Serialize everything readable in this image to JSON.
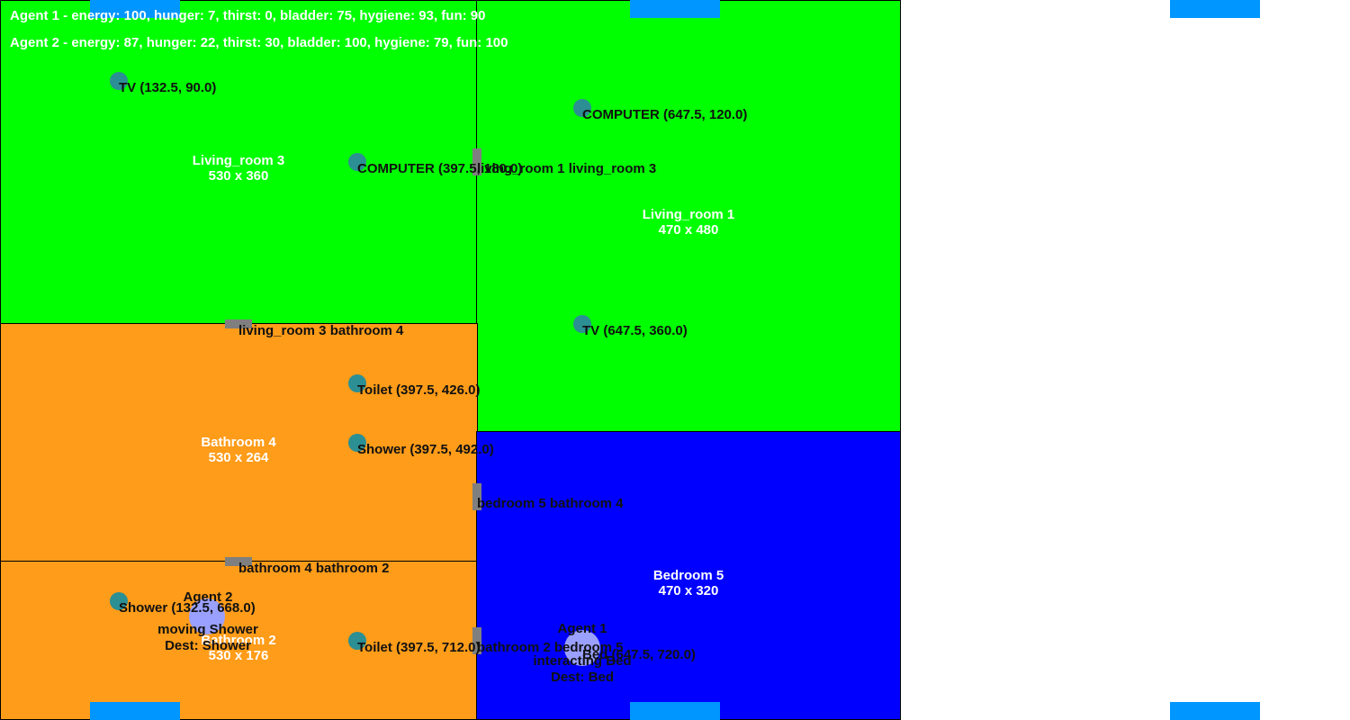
{
  "status": {
    "agent1": "Agent 1 - energy: 100, hunger: 7, thirst: 0, bladder: 75, hygiene: 93, fun: 90",
    "agent2": "Agent 2 - energy: 87, hunger: 22, thirst: 30, bladder: 100, hygiene: 79, fun: 100"
  },
  "rooms": {
    "living_room_3": {
      "name": "Living_room 3",
      "size": "530 x 360"
    },
    "living_room_1": {
      "name": "Living_room 1",
      "size": "470 x 480"
    },
    "bathroom_4": {
      "name": "Bathroom 4",
      "size": "530 x 264"
    },
    "bathroom_2": {
      "name": "Bathroom 2",
      "size": "530 x 176"
    },
    "bedroom_5": {
      "name": "Bedroom 5",
      "size": "470 x 320"
    }
  },
  "objects": {
    "tv_lr3": "TV (132.5, 90.0)",
    "computer_lr3": "COMPUTER (397.5, 180.0)",
    "computer_lr1": "COMPUTER (647.5, 120.0)",
    "tv_lr1": "TV (647.5, 360.0)",
    "toilet_b4": "Toilet (397.5, 426.0)",
    "shower_b4": "Shower (397.5, 492.0)",
    "shower_b2": "Shower (132.5, 668.0)",
    "toilet_b2": "Toilet (397.5, 712.0)",
    "bed_b5": "Bed (647.5, 720.0)"
  },
  "doors": {
    "lr1_lr3": "living_room 1 living_room 3",
    "lr3_b4": "living_room 3 bathroom 4",
    "b5_b4": "bedroom 5 bathroom 4",
    "b4_b2": "bathroom 4 bathroom 2",
    "b2_b5": "bathroom 2 bedroom 5"
  },
  "agents": {
    "agent1": {
      "name": "Agent 1",
      "state": "interacting Bed",
      "dest": "Dest: Bed"
    },
    "agent2": {
      "name": "Agent 2",
      "state": "moving Shower",
      "dest": "Dest: Shower"
    }
  },
  "colors": {
    "living_room": "#00ff00",
    "bathroom": "#ff9c19",
    "bedroom": "#0000ff",
    "window": "#0096ff",
    "door": "#7f7f7f",
    "object": "#2b8f93",
    "agent": "#9aa0ff"
  }
}
